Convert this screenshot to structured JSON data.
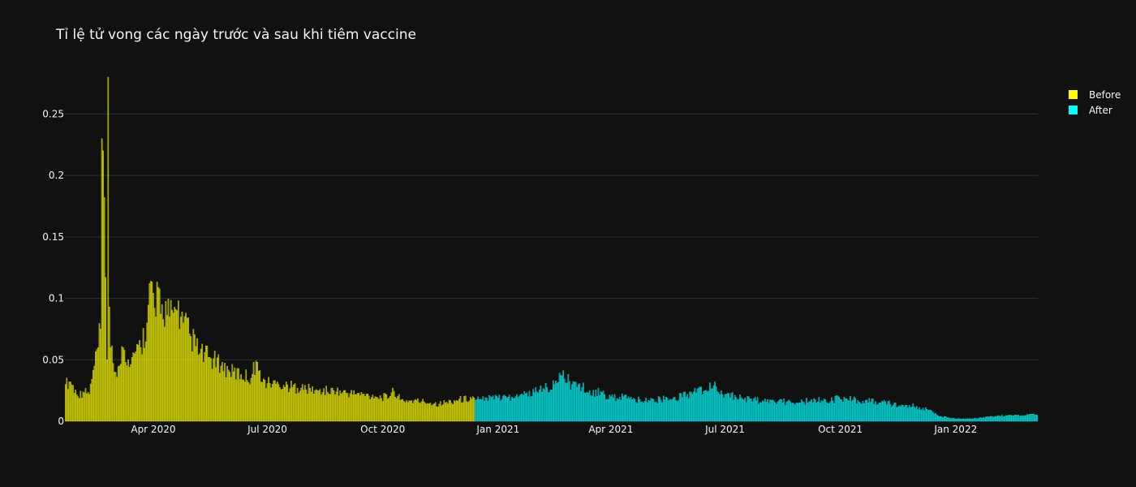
{
  "chart_data": {
    "type": "bar",
    "title": "Tỉ lệ tử vong các ngày trước và sau khi tiêm vaccine",
    "xlabel": "",
    "ylabel": "",
    "x_range": [
      "2020-01-22",
      "2022-03-07"
    ],
    "ylim": [
      0,
      0.28
    ],
    "y_ticks": [
      0,
      0.05,
      0.1,
      0.15,
      0.2,
      0.25
    ],
    "y_tick_labels": [
      "0",
      "0.05",
      "0.1",
      "0.15",
      "0.2",
      "0.25"
    ],
    "x_ticks": [
      "2020-04-01",
      "2020-07-01",
      "2020-10-01",
      "2021-01-01",
      "2021-04-01",
      "2021-07-01",
      "2021-10-01",
      "2022-01-01"
    ],
    "x_tick_labels": [
      "Apr 2020",
      "Jul 2020",
      "Oct 2020",
      "Jan 2021",
      "Apr 2021",
      "Jul 2021",
      "Oct 2021",
      "Jan 2022"
    ],
    "grid": true,
    "legend_position": "top-right",
    "series": [
      {
        "name": "Before",
        "color": "#ffff00",
        "start_date": "2020-01-22",
        "end_date": "2020-12-13",
        "keypoints": [
          [
            "2020-01-22",
            0.03
          ],
          [
            "2020-01-26",
            0.032
          ],
          [
            "2020-02-01",
            0.02
          ],
          [
            "2020-02-05",
            0.024
          ],
          [
            "2020-02-10",
            0.022
          ],
          [
            "2020-02-14",
            0.045
          ],
          [
            "2020-02-17",
            0.06
          ],
          [
            "2020-02-19",
            0.075
          ],
          [
            "2020-02-20",
            0.23
          ],
          [
            "2020-02-21",
            0.22
          ],
          [
            "2020-02-23",
            0.117
          ],
          [
            "2020-02-24",
            0.05
          ],
          [
            "2020-02-25",
            0.28
          ],
          [
            "2020-02-26",
            0.093
          ],
          [
            "2020-02-27",
            0.06
          ],
          [
            "2020-03-01",
            0.04
          ],
          [
            "2020-03-05",
            0.045
          ],
          [
            "2020-03-08",
            0.06
          ],
          [
            "2020-03-12",
            0.05
          ],
          [
            "2020-03-17",
            0.055
          ],
          [
            "2020-03-22",
            0.06
          ],
          [
            "2020-03-27",
            0.08
          ],
          [
            "2020-03-30",
            0.114
          ],
          [
            "2020-04-03",
            0.085
          ],
          [
            "2020-04-05",
            0.109
          ],
          [
            "2020-04-08",
            0.095
          ],
          [
            "2020-04-14",
            0.085
          ],
          [
            "2020-04-20",
            0.09
          ],
          [
            "2020-04-25",
            0.08
          ],
          [
            "2020-05-01",
            0.069
          ],
          [
            "2020-05-08",
            0.055
          ],
          [
            "2020-05-15",
            0.052
          ],
          [
            "2020-05-25",
            0.045
          ],
          [
            "2020-06-01",
            0.04
          ],
          [
            "2020-06-10",
            0.038
          ],
          [
            "2020-06-18",
            0.035
          ],
          [
            "2020-06-22",
            0.049
          ],
          [
            "2020-06-26",
            0.032
          ],
          [
            "2020-07-10",
            0.03
          ],
          [
            "2020-07-25",
            0.027
          ],
          [
            "2020-08-10",
            0.025
          ],
          [
            "2020-08-25",
            0.024
          ],
          [
            "2020-09-10",
            0.022
          ],
          [
            "2020-09-25",
            0.02
          ],
          [
            "2020-10-06",
            0.019
          ],
          [
            "2020-10-09",
            0.027
          ],
          [
            "2020-10-15",
            0.017
          ],
          [
            "2020-11-01",
            0.016
          ],
          [
            "2020-11-15",
            0.014
          ],
          [
            "2020-11-29",
            0.017
          ],
          [
            "2020-12-13",
            0.019
          ]
        ]
      },
      {
        "name": "After",
        "color": "#00ffff",
        "start_date": "2020-12-14",
        "end_date": "2022-03-07",
        "keypoints": [
          [
            "2020-12-14",
            0.017
          ],
          [
            "2021-01-01",
            0.019
          ],
          [
            "2021-01-15",
            0.02
          ],
          [
            "2021-02-01",
            0.024
          ],
          [
            "2021-02-15",
            0.03
          ],
          [
            "2021-02-21",
            0.037
          ],
          [
            "2021-03-01",
            0.03
          ],
          [
            "2021-03-15",
            0.025
          ],
          [
            "2021-04-01",
            0.02
          ],
          [
            "2021-04-20",
            0.018
          ],
          [
            "2021-05-01",
            0.017
          ],
          [
            "2021-05-20",
            0.018
          ],
          [
            "2021-06-01",
            0.022
          ],
          [
            "2021-06-15",
            0.025
          ],
          [
            "2021-06-22",
            0.029
          ],
          [
            "2021-07-01",
            0.022
          ],
          [
            "2021-07-15",
            0.018
          ],
          [
            "2021-08-01",
            0.016
          ],
          [
            "2021-09-01",
            0.016
          ],
          [
            "2021-10-01",
            0.018
          ],
          [
            "2021-10-15",
            0.017
          ],
          [
            "2021-11-01",
            0.015
          ],
          [
            "2021-11-20",
            0.013
          ],
          [
            "2021-12-01",
            0.012
          ],
          [
            "2021-12-10",
            0.009
          ],
          [
            "2021-12-20",
            0.004
          ],
          [
            "2022-01-01",
            0.002
          ],
          [
            "2022-01-15",
            0.002
          ],
          [
            "2022-02-01",
            0.004
          ],
          [
            "2022-02-20",
            0.005
          ],
          [
            "2022-03-07",
            0.005
          ]
        ]
      }
    ]
  }
}
